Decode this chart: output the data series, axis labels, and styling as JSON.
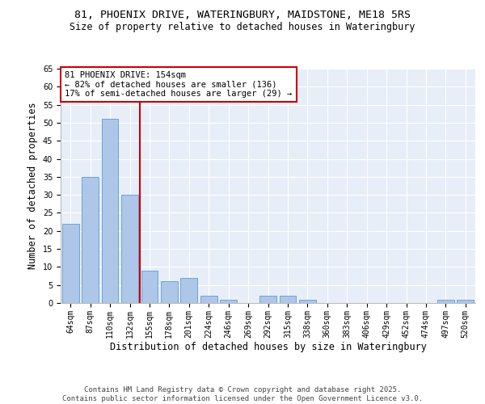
{
  "title": "81, PHOENIX DRIVE, WATERINGBURY, MAIDSTONE, ME18 5RS",
  "subtitle": "Size of property relative to detached houses in Wateringbury",
  "xlabel": "Distribution of detached houses by size in Wateringbury",
  "ylabel": "Number of detached properties",
  "categories": [
    "64sqm",
    "87sqm",
    "110sqm",
    "132sqm",
    "155sqm",
    "178sqm",
    "201sqm",
    "224sqm",
    "246sqm",
    "269sqm",
    "292sqm",
    "315sqm",
    "338sqm",
    "360sqm",
    "383sqm",
    "406sqm",
    "429sqm",
    "452sqm",
    "474sqm",
    "497sqm",
    "520sqm"
  ],
  "values": [
    22,
    35,
    51,
    30,
    9,
    6,
    7,
    2,
    1,
    0,
    2,
    2,
    1,
    0,
    0,
    0,
    0,
    0,
    0,
    1,
    1
  ],
  "bar_color": "#aec6e8",
  "bar_edge_color": "#5b9bd5",
  "vline_index": 3.5,
  "vline_color": "#cc0000",
  "annotation_text": "81 PHOENIX DRIVE: 154sqm\n← 82% of detached houses are smaller (136)\n17% of semi-detached houses are larger (29) →",
  "annotation_box_color": "#ffffff",
  "annotation_box_edge": "#cc0000",
  "ylim": [
    0,
    65
  ],
  "yticks": [
    0,
    5,
    10,
    15,
    20,
    25,
    30,
    35,
    40,
    45,
    50,
    55,
    60,
    65
  ],
  "background_color": "#e8eef8",
  "grid_color": "#ffffff",
  "fig_background": "#ffffff",
  "footer": "Contains HM Land Registry data © Crown copyright and database right 2025.\nContains public sector information licensed under the Open Government Licence v3.0.",
  "title_fontsize": 9.5,
  "subtitle_fontsize": 8.5,
  "xlabel_fontsize": 8.5,
  "ylabel_fontsize": 8.5,
  "tick_fontsize": 7,
  "annotation_fontsize": 7.5,
  "footer_fontsize": 6.5
}
